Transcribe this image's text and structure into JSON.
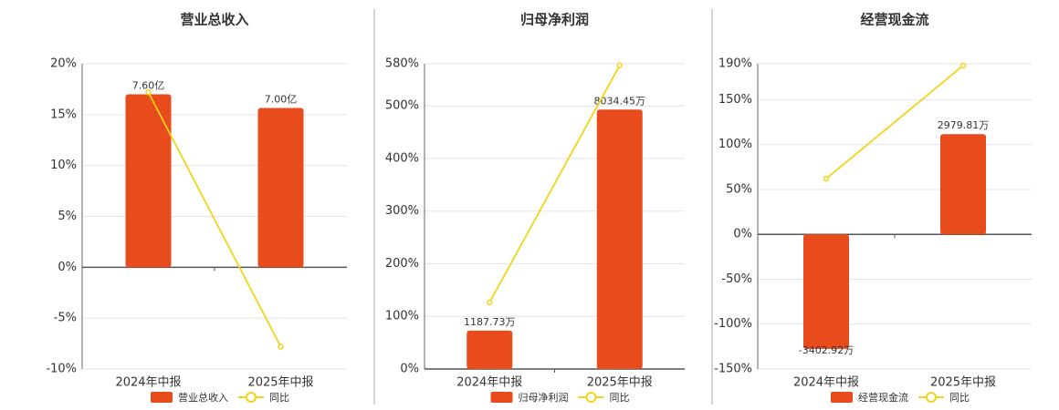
{
  "chart_data": [
    {
      "type": "combo",
      "title": "营业总收入",
      "categories": [
        "2024年中报",
        "2025年中报"
      ],
      "series": [
        {
          "name": "营业总收入",
          "type": "bar",
          "color": "#e84b1c",
          "values": [
            7.6,
            7.0
          ],
          "value_labels": [
            "7.60亿",
            "7.00亿"
          ]
        },
        {
          "name": "同比",
          "type": "line",
          "color": "#f2d418",
          "values": [
            17.2,
            -7.8
          ]
        }
      ],
      "ylim": [
        -10,
        20
      ],
      "yticks": [
        {
          "value": -10,
          "label": "-10%"
        },
        {
          "value": -5,
          "label": "-5%"
        },
        {
          "value": 0,
          "label": "0%"
        },
        {
          "value": 5,
          "label": "5%"
        },
        {
          "value": 10,
          "label": "10%"
        },
        {
          "value": 15,
          "label": "15%"
        },
        {
          "value": 20,
          "label": "20%"
        }
      ],
      "grid": true
    },
    {
      "type": "combo",
      "title": "归母净利润",
      "categories": [
        "2024年中报",
        "2025年中报"
      ],
      "series": [
        {
          "name": "归母净利润",
          "type": "bar",
          "color": "#e84b1c",
          "values": [
            1187.73,
            8034.45
          ],
          "value_labels": [
            "1187.73万",
            "8034.45万"
          ]
        },
        {
          "name": "同比",
          "type": "line",
          "color": "#f2d418",
          "values": [
            126.5,
            577
          ]
        }
      ],
      "ylim": [
        0,
        580
      ],
      "yticks": [
        {
          "value": 0,
          "label": "0%"
        },
        {
          "value": 100,
          "label": "100%"
        },
        {
          "value": 200,
          "label": "200%"
        },
        {
          "value": 300,
          "label": "300%"
        },
        {
          "value": 400,
          "label": "400%"
        },
        {
          "value": 500,
          "label": "500%"
        },
        {
          "value": 580,
          "label": "580%"
        }
      ],
      "grid": true
    },
    {
      "type": "combo",
      "title": "经营现金流",
      "categories": [
        "2024年中报",
        "2025年中报"
      ],
      "series": [
        {
          "name": "经营现金流",
          "type": "bar",
          "color": "#e84b1c",
          "values": [
            -3402.92,
            2979.81
          ],
          "value_labels": [
            "-3402.92万",
            "2979.81万"
          ]
        },
        {
          "name": "同比",
          "type": "line",
          "color": "#f2d418",
          "values": [
            62,
            188
          ]
        }
      ],
      "ylim": [
        -150,
        190
      ],
      "yticks": [
        {
          "value": -150,
          "label": "-150%"
        },
        {
          "value": -100,
          "label": "-100%"
        },
        {
          "value": -50,
          "label": "-50%"
        },
        {
          "value": 0,
          "label": "0%"
        },
        {
          "value": 50,
          "label": "50%"
        },
        {
          "value": 100,
          "label": "100%"
        },
        {
          "value": 150,
          "label": "150%"
        },
        {
          "value": 190,
          "label": "190%"
        }
      ],
      "grid": true
    }
  ]
}
